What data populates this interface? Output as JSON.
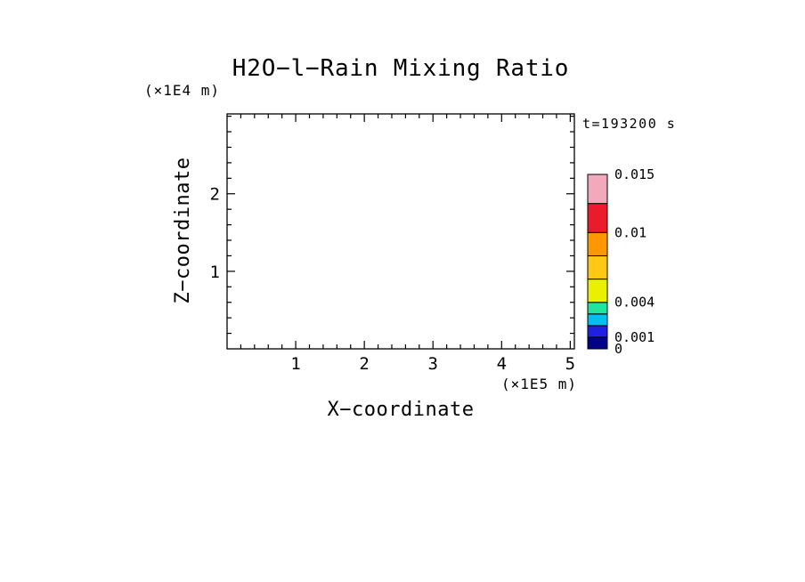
{
  "chart_data": {
    "type": "heatmap",
    "title": "H2O−l−Rain Mixing Ratio",
    "time_label": "t=193200 s",
    "x_axis": {
      "label": "X−coordinate",
      "units": "(×1E5 m)",
      "min": 0,
      "max": 5.06,
      "major_ticks": [
        "1",
        "2",
        "3",
        "4",
        "5"
      ],
      "minor_step": 0.2
    },
    "z_axis": {
      "label": "Z−coordinate",
      "units": "(×1E4 m)",
      "min": 0,
      "max": 3.03,
      "major_ticks": [
        "1",
        "2"
      ],
      "minor_step": 0.2
    },
    "colorbar": {
      "levels": [
        0,
        0.001,
        0.002,
        0.003,
        0.004,
        0.006,
        0.008,
        0.01,
        0.0125,
        0.015
      ],
      "segment_colors": [
        "#000088",
        "#2020E0",
        "#00C0F0",
        "#1FE5A0",
        "#E9F000",
        "#FFC814",
        "#FF9800",
        "#EA1C2C",
        "#F2A9BC"
      ],
      "tick_labels": [
        "0",
        "0.001",
        "0.004",
        "0.01",
        "0.015"
      ]
    },
    "values": [],
    "grid": false,
    "legend_position": "right"
  }
}
